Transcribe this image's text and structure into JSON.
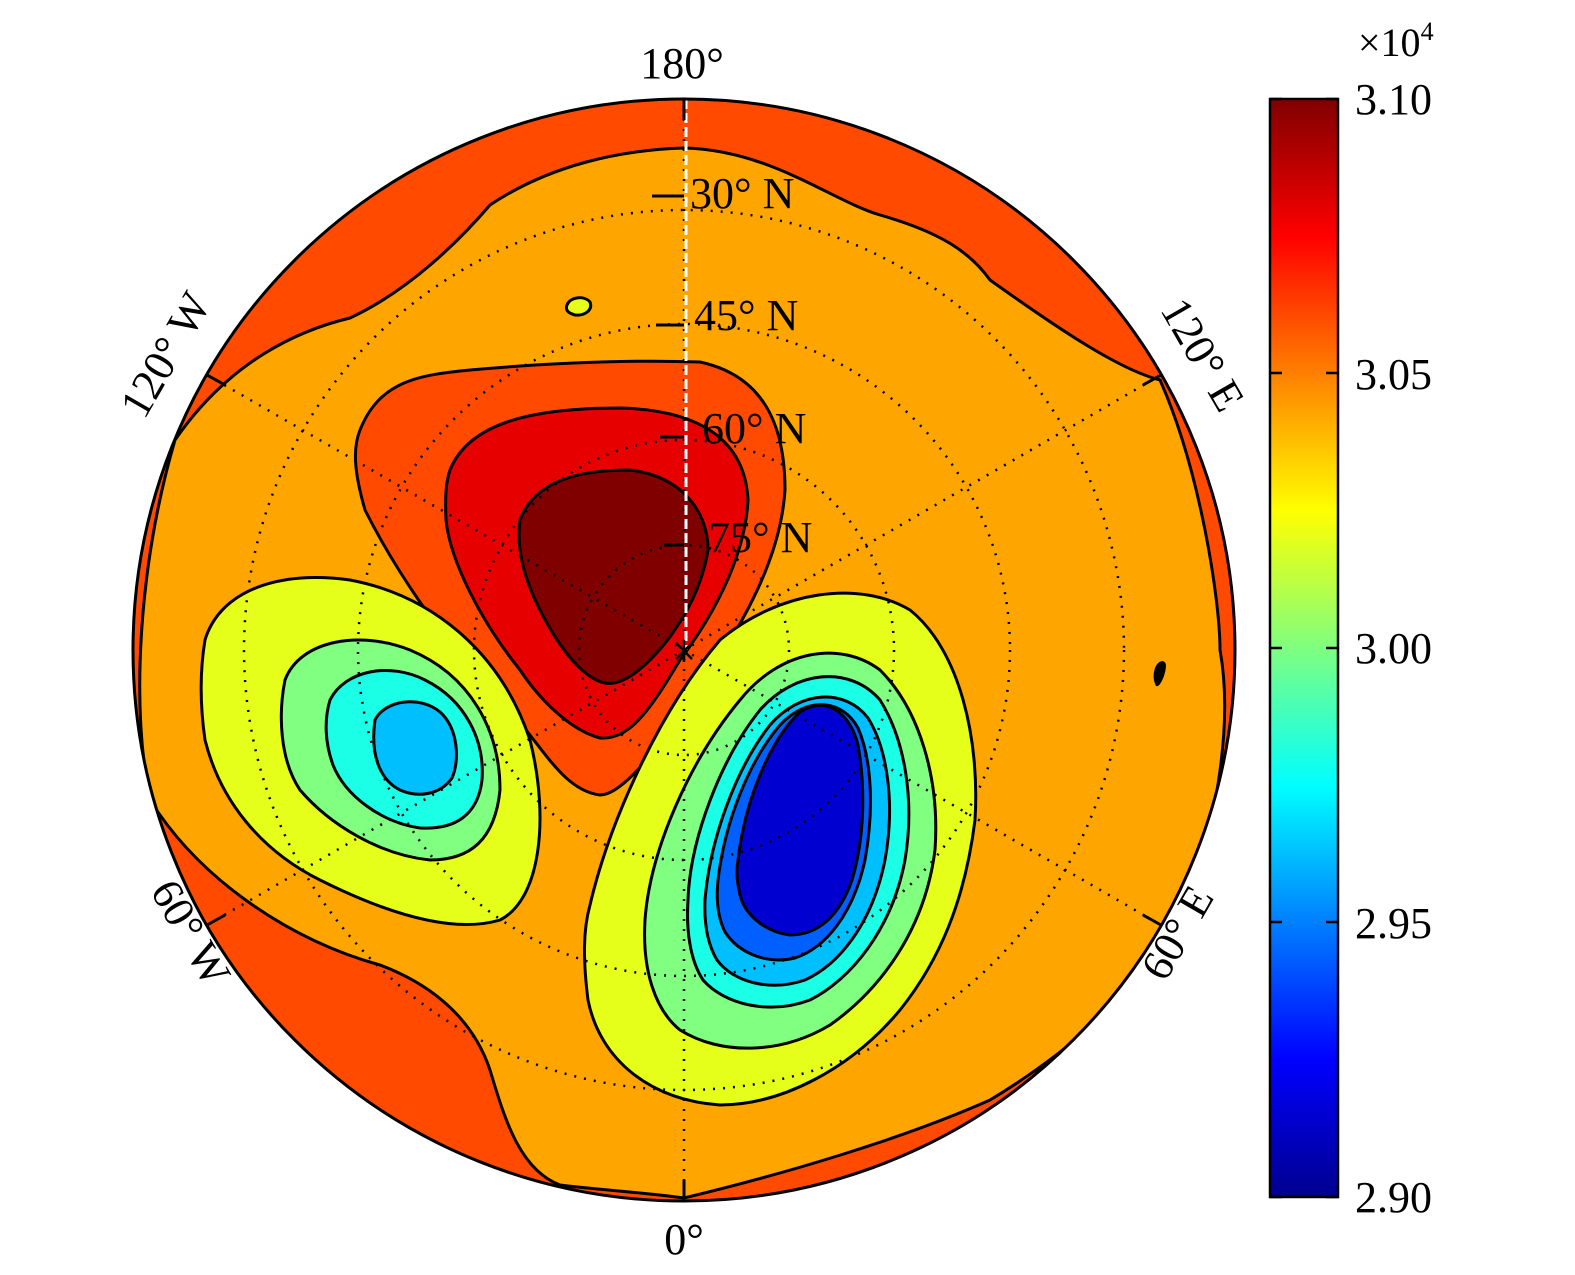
{
  "map": {
    "longitude_labels": {
      "top": "180°",
      "bottom": "0°",
      "upper_left": "120° W",
      "upper_right": "120° E",
      "lower_left": "60° W",
      "lower_right": "60° E"
    },
    "latitude_labels": [
      "30° N",
      "45° N",
      "60° N",
      "75° N"
    ],
    "projection": "north polar stereographic",
    "graticule": "dotted",
    "pole_marker": "asterisk"
  },
  "colorbar": {
    "multiplier": "×10",
    "exponent": "4",
    "tick_labels": [
      "3.10",
      "3.05",
      "3.00",
      "2.95",
      "2.90"
    ],
    "range": [
      2.9,
      3.1
    ],
    "colormap": "jet",
    "colors": {
      "low": "#00008f",
      "mid": "#7fff7f",
      "high": "#800000"
    }
  },
  "fill_colors": {
    "level_3_06": "#ff4a00",
    "level_3_04": "#ffa500",
    "level_3_02": "#e5ff1a",
    "level_3_00": "#80ff80",
    "level_2_98": "#1affe5",
    "level_2_96": "#00bfff",
    "level_3_08": "#e60000",
    "level_3_10": "#800000",
    "level_2_94": "#0060ff",
    "level_2_92": "#0000d0"
  }
}
